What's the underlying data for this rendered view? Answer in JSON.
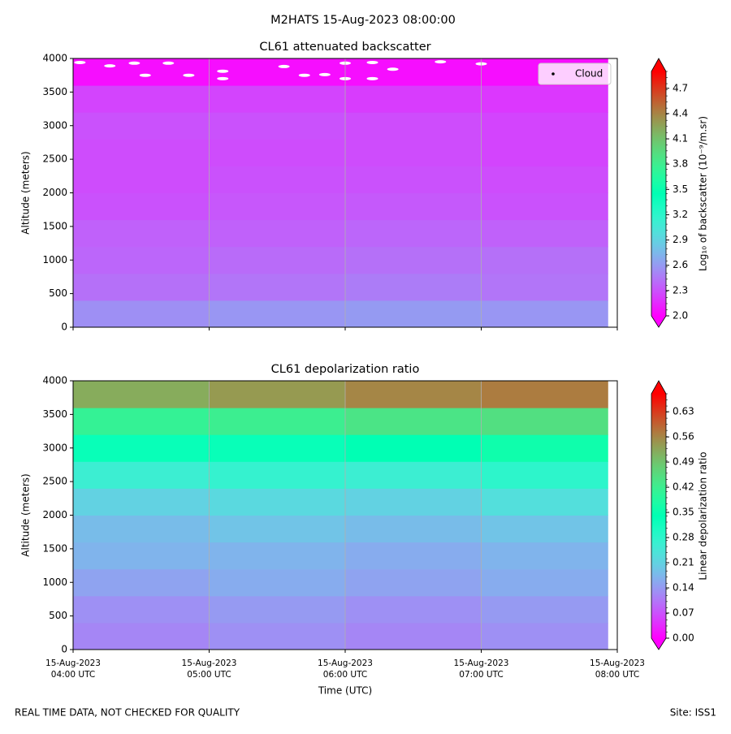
{
  "title": "M2HATS 15-Aug-2023 08:00:00",
  "notes": [
    "REAL TIME DATA, NOT CHECKED FOR QUALITY",
    "Site: ISS1"
  ],
  "chart_data": [
    {
      "type": "heatmap",
      "title": "CL61 attenuated backscatter",
      "y_label": "Altitude (meters)",
      "colorbar_label": "Log₁₀ of backscatter (10⁻⁹/m.sr)",
      "colormap": "rainbow",
      "xlim": [
        4,
        8
      ],
      "xticks": [
        4,
        5,
        6,
        7,
        8
      ],
      "grid": true,
      "ylim": [
        0,
        4000
      ],
      "yticks": [
        0,
        500,
        1000,
        1500,
        2000,
        2500,
        3000,
        3500,
        4000
      ],
      "xbins": [
        4,
        5,
        6,
        7,
        7.93
      ],
      "ybins": [
        0,
        400,
        800,
        1200,
        1600,
        2000,
        2400,
        2800,
        3200,
        3600,
        4000
      ],
      "values": [
        [
          2.55,
          2.58,
          2.6,
          2.58
        ],
        [
          2.42,
          2.44,
          2.47,
          2.44
        ],
        [
          2.38,
          2.4,
          2.42,
          2.42
        ],
        [
          2.36,
          2.36,
          2.38,
          2.36
        ],
        [
          2.3,
          2.32,
          2.33,
          2.3
        ],
        [
          2.28,
          2.3,
          2.3,
          2.28
        ],
        [
          2.28,
          2.28,
          2.28,
          2.25
        ],
        [
          2.3,
          2.3,
          2.28,
          2.25
        ],
        [
          2.25,
          2.25,
          2.22,
          2.2
        ],
        [
          2.05,
          2.05,
          2.05,
          2.05
        ]
      ],
      "clim": [
        2.0,
        4.9
      ],
      "cticks": [
        {
          "value": 2,
          "label": "2.0"
        },
        2.3,
        2.6,
        2.9,
        3.2,
        3.5,
        3.8,
        4.1,
        4.4,
        4.7
      ],
      "legend": "upper right",
      "series": [
        {
          "name": "Cloud",
          "color": "#ffffff",
          "x": [
            4.05,
            4.27,
            4.45,
            4.53,
            4.7,
            4.85,
            5.1,
            5.1,
            5.55,
            5.7,
            5.85,
            6.0,
            6.0,
            6.2,
            6.2,
            6.35,
            6.7,
            7.0
          ],
          "y": [
            3940,
            3890,
            3930,
            3750,
            3930,
            3750,
            3810,
            3700,
            3880,
            3750,
            3760,
            3930,
            3700,
            3940,
            3700,
            3840,
            3950,
            3920
          ]
        }
      ]
    },
    {
      "type": "heatmap",
      "title": "CL61 depolarization ratio",
      "y_label": "Altitude (meters)",
      "x_label": "Time (UTC)",
      "colorbar_label": "Linear depolarization ratio",
      "colormap": "rainbow",
      "xlim": [
        4,
        8
      ],
      "grid": true,
      "xticks": [
        {
          "value": 4,
          "label": [
            "15-Aug-2023",
            "04:00 UTC"
          ]
        },
        {
          "value": 5,
          "label": [
            "15-Aug-2023",
            "05:00 UTC"
          ]
        },
        {
          "value": 6,
          "label": [
            "15-Aug-2023",
            "06:00 UTC"
          ]
        },
        {
          "value": 7,
          "label": [
            "15-Aug-2023",
            "07:00 UTC"
          ]
        },
        {
          "value": 8,
          "label": [
            "15-Aug-2023",
            "08:00 UTC"
          ]
        }
      ],
      "ylim": [
        0,
        4000
      ],
      "yticks": [
        0,
        500,
        1000,
        1500,
        2000,
        2500,
        3000,
        3500,
        4000
      ],
      "xbins": [
        4,
        5,
        6,
        7,
        7.93
      ],
      "ybins": [
        0,
        400,
        800,
        1200,
        1600,
        2000,
        2400,
        2800,
        3200,
        3600,
        4000
      ],
      "values": [
        [
          0.12,
          0.13,
          0.12,
          0.13
        ],
        [
          0.13,
          0.14,
          0.13,
          0.14
        ],
        [
          0.15,
          0.16,
          0.15,
          0.16
        ],
        [
          0.17,
          0.17,
          0.16,
          0.17
        ],
        [
          0.18,
          0.19,
          0.18,
          0.19
        ],
        [
          0.21,
          0.22,
          0.21,
          0.23
        ],
        [
          0.26,
          0.27,
          0.26,
          0.28
        ],
        [
          0.33,
          0.33,
          0.34,
          0.36
        ],
        [
          0.41,
          0.42,
          0.44,
          0.45
        ],
        [
          0.52,
          0.54,
          0.56,
          0.57
        ]
      ],
      "clim": [
        0,
        0.68
      ],
      "cticks": [
        {
          "value": 0,
          "label": "0.00"
        },
        0.07,
        0.14,
        0.21,
        0.28,
        0.35,
        0.42,
        0.49,
        0.56,
        0.63
      ]
    }
  ]
}
